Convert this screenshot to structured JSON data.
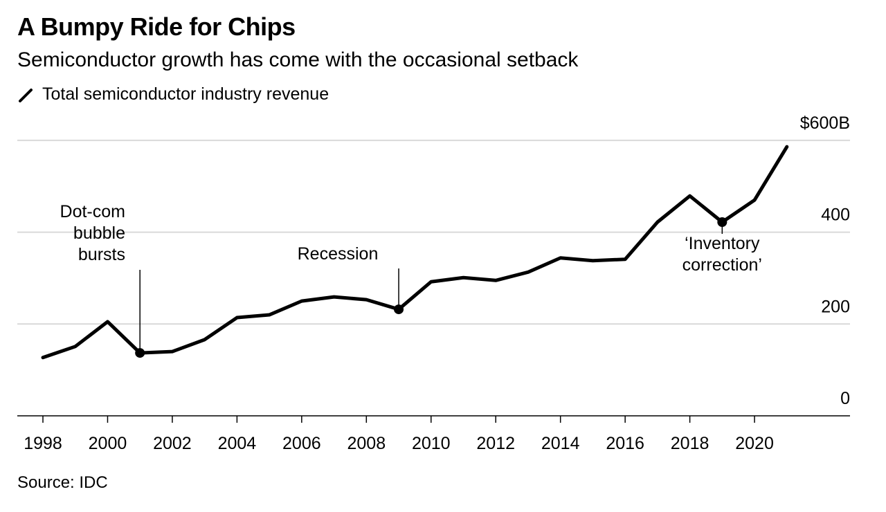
{
  "title": "A Bumpy Ride for Chips",
  "subtitle": "Semiconductor growth has come with the occasional setback",
  "legend_label": "Total semiconductor industry revenue",
  "source": "Source: IDC",
  "chart_data": {
    "type": "line",
    "title": "A Bumpy Ride for Chips",
    "xlabel": "",
    "ylabel": "",
    "x": [
      1998,
      1999,
      2000,
      2001,
      2002,
      2003,
      2004,
      2005,
      2006,
      2007,
      2008,
      2009,
      2010,
      2011,
      2012,
      2013,
      2014,
      2015,
      2016,
      2017,
      2018,
      2019,
      2020,
      2021
    ],
    "series": [
      {
        "name": "Total semiconductor industry revenue",
        "values": [
          127,
          151,
          205,
          137,
          140,
          166,
          214,
          220,
          250,
          259,
          253,
          232,
          292,
          301,
          295,
          313,
          344,
          338,
          341,
          422,
          479,
          422,
          470,
          586
        ]
      }
    ],
    "ylim": [
      0,
      600
    ],
    "xlim": [
      1998,
      2023
    ],
    "yticks": [
      0,
      200,
      400,
      600
    ],
    "ytick_labels": [
      "0",
      "200",
      "400",
      "$600B"
    ],
    "xticks": [
      1998,
      2000,
      2002,
      2004,
      2006,
      2008,
      2010,
      2012,
      2014,
      2016,
      2018,
      2020
    ],
    "xtick_labels": [
      "1998",
      "2000",
      "2002",
      "2004",
      "2006",
      "2008",
      "2010",
      "2012",
      "2014",
      "2016",
      "2018",
      "2020"
    ],
    "grid": true,
    "legend_position": "top-left",
    "annotations": [
      {
        "x": 2001,
        "lines": [
          "Dot-com",
          "bubble",
          "bursts"
        ]
      },
      {
        "x": 2009,
        "lines": [
          "Recession"
        ]
      },
      {
        "x": 2019,
        "lines": [
          "‘Inventory",
          "correction’"
        ]
      }
    ],
    "color": "#000000",
    "grid_color": "#d9d9d9"
  }
}
